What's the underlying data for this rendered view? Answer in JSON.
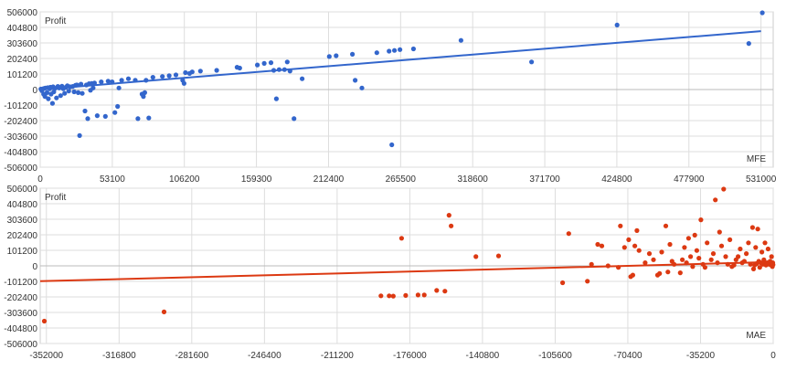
{
  "chart_data": [
    {
      "type": "scatter",
      "title": "",
      "ylabel": "Profit",
      "xlabel": "MFE",
      "color": "#3366cc",
      "xlim": [
        0,
        540000
      ],
      "ylim": [
        -506000,
        506000
      ],
      "xticks": [
        0,
        53100,
        106200,
        159300,
        212400,
        265500,
        318600,
        371700,
        424800,
        477900,
        531000
      ],
      "yticks": [
        -506000,
        -404800,
        -303600,
        -202400,
        -101200,
        0,
        101200,
        202400,
        303600,
        404800,
        506000
      ],
      "grid": true,
      "trendline": [
        [
          0,
          0
        ],
        [
          531000,
          380000
        ]
      ],
      "points": [
        [
          500,
          3000
        ],
        [
          1200,
          -8000
        ],
        [
          2000,
          5000
        ],
        [
          2500,
          -30000
        ],
        [
          3000,
          8000
        ],
        [
          3500,
          -45000
        ],
        [
          4000,
          10000
        ],
        [
          5000,
          -20000
        ],
        [
          5500,
          12000
        ],
        [
          6000,
          -60000
        ],
        [
          7000,
          5000
        ],
        [
          7500,
          15000
        ],
        [
          8000,
          -30000
        ],
        [
          9000,
          -90000
        ],
        [
          9500,
          18000
        ],
        [
          10000,
          -15000
        ],
        [
          11000,
          8000
        ],
        [
          12000,
          -55000
        ],
        [
          13000,
          20000
        ],
        [
          14000,
          10000
        ],
        [
          15000,
          -40000
        ],
        [
          16000,
          22000
        ],
        [
          17000,
          5000
        ],
        [
          18000,
          -25000
        ],
        [
          19000,
          15000
        ],
        [
          20000,
          25000
        ],
        [
          21000,
          -10000
        ],
        [
          22000,
          18000
        ],
        [
          24000,
          20000
        ],
        [
          25000,
          -15000
        ],
        [
          26000,
          28000
        ],
        [
          27000,
          30000
        ],
        [
          28000,
          -20000
        ],
        [
          29000,
          -300000
        ],
        [
          30000,
          35000
        ],
        [
          31000,
          -25000
        ],
        [
          33000,
          -140000
        ],
        [
          34000,
          30000
        ],
        [
          35000,
          -190000
        ],
        [
          36000,
          38000
        ],
        [
          37000,
          -5000
        ],
        [
          38000,
          40000
        ],
        [
          39000,
          10000
        ],
        [
          40000,
          42000
        ],
        [
          42000,
          -170000
        ],
        [
          45000,
          50000
        ],
        [
          48000,
          -175000
        ],
        [
          50000,
          55000
        ],
        [
          53000,
          50000
        ],
        [
          55000,
          -150000
        ],
        [
          57000,
          -110000
        ],
        [
          58000,
          10000
        ],
        [
          60000,
          60000
        ],
        [
          65000,
          70000
        ],
        [
          70000,
          60000
        ],
        [
          72000,
          -190000
        ],
        [
          75000,
          -30000
        ],
        [
          76000,
          -45000
        ],
        [
          77000,
          -20000
        ],
        [
          78000,
          60000
        ],
        [
          80000,
          -185000
        ],
        [
          83000,
          80000
        ],
        [
          90000,
          85000
        ],
        [
          95000,
          90000
        ],
        [
          100000,
          95000
        ],
        [
          105000,
          60000
        ],
        [
          106000,
          40000
        ],
        [
          107000,
          110000
        ],
        [
          110000,
          105000
        ],
        [
          112000,
          115000
        ],
        [
          118000,
          120000
        ],
        [
          130000,
          125000
        ],
        [
          145000,
          145000
        ],
        [
          147000,
          140000
        ],
        [
          160000,
          160000
        ],
        [
          165000,
          170000
        ],
        [
          170000,
          175000
        ],
        [
          172000,
          125000
        ],
        [
          174000,
          -60000
        ],
        [
          176000,
          130000
        ],
        [
          180000,
          130000
        ],
        [
          182000,
          180000
        ],
        [
          184000,
          120000
        ],
        [
          187000,
          -190000
        ],
        [
          193000,
          70000
        ],
        [
          213000,
          215000
        ],
        [
          218000,
          220000
        ],
        [
          230000,
          230000
        ],
        [
          232000,
          60000
        ],
        [
          237000,
          10000
        ],
        [
          248000,
          240000
        ],
        [
          257000,
          250000
        ],
        [
          259000,
          -360000
        ],
        [
          261000,
          255000
        ],
        [
          265000,
          260000
        ],
        [
          275000,
          265000
        ],
        [
          310000,
          320000
        ],
        [
          362000,
          180000
        ],
        [
          425000,
          420000
        ],
        [
          522000,
          300000
        ],
        [
          532000,
          500000
        ]
      ]
    },
    {
      "type": "scatter",
      "title": "",
      "ylabel": "Profit",
      "xlabel": "MAE",
      "color": "#dc3912",
      "xlim": [
        -355000,
        0
      ],
      "ylim": [
        -506000,
        506000
      ],
      "xticks": [
        -352000,
        -316800,
        -281600,
        -246400,
        -211200,
        -176000,
        -140800,
        -105600,
        -70400,
        -35200,
        0
      ],
      "yticks": [
        -506000,
        -404800,
        -303600,
        -202400,
        -101200,
        0,
        101200,
        202400,
        303600,
        404800,
        506000
      ],
      "grid": true,
      "trendline": [
        [
          -355000,
          -100000
        ],
        [
          0,
          25000
        ]
      ],
      "points": [
        [
          -353000,
          -360000
        ],
        [
          -295000,
          -300000
        ],
        [
          -190000,
          -195000
        ],
        [
          -186000,
          -195000
        ],
        [
          -184000,
          -197000
        ],
        [
          -180000,
          180000
        ],
        [
          -178000,
          -193000
        ],
        [
          -172000,
          -190000
        ],
        [
          -169000,
          -190000
        ],
        [
          -163000,
          -160000
        ],
        [
          -159000,
          -165000
        ],
        [
          -157000,
          330000
        ],
        [
          -156000,
          260000
        ],
        [
          -144000,
          60000
        ],
        [
          -133000,
          65000
        ],
        [
          -102000,
          -110000
        ],
        [
          -99000,
          210000
        ],
        [
          -90000,
          -100000
        ],
        [
          -88000,
          10000
        ],
        [
          -85000,
          140000
        ],
        [
          -83000,
          130000
        ],
        [
          -80000,
          0
        ],
        [
          -75000,
          -10000
        ],
        [
          -74000,
          260000
        ],
        [
          -72000,
          120000
        ],
        [
          -70000,
          170000
        ],
        [
          -69000,
          -70000
        ],
        [
          -68000,
          -60000
        ],
        [
          -67000,
          130000
        ],
        [
          -66000,
          230000
        ],
        [
          -65000,
          100000
        ],
        [
          -62000,
          20000
        ],
        [
          -60000,
          80000
        ],
        [
          -58000,
          40000
        ],
        [
          -56000,
          -60000
        ],
        [
          -55000,
          -50000
        ],
        [
          -54000,
          90000
        ],
        [
          -52000,
          260000
        ],
        [
          -51000,
          -40000
        ],
        [
          -50000,
          140000
        ],
        [
          -49000,
          30000
        ],
        [
          -48000,
          10000
        ],
        [
          -45000,
          -45000
        ],
        [
          -44000,
          40000
        ],
        [
          -43000,
          120000
        ],
        [
          -42000,
          20000
        ],
        [
          -41000,
          180000
        ],
        [
          -40000,
          60000
        ],
        [
          -39000,
          -5000
        ],
        [
          -38000,
          200000
        ],
        [
          -37000,
          100000
        ],
        [
          -36000,
          50000
        ],
        [
          -35000,
          300000
        ],
        [
          -34000,
          10000
        ],
        [
          -33000,
          -10000
        ],
        [
          -32000,
          150000
        ],
        [
          -30000,
          40000
        ],
        [
          -29000,
          80000
        ],
        [
          -28000,
          430000
        ],
        [
          -27000,
          20000
        ],
        [
          -26000,
          220000
        ],
        [
          -25000,
          130000
        ],
        [
          -24000,
          500000
        ],
        [
          -23000,
          60000
        ],
        [
          -22000,
          10000
        ],
        [
          -21000,
          170000
        ],
        [
          -20000,
          -5000
        ],
        [
          -19000,
          5000
        ],
        [
          -18000,
          40000
        ],
        [
          -17000,
          60000
        ],
        [
          -16000,
          110000
        ],
        [
          -15000,
          20000
        ],
        [
          -14000,
          30000
        ],
        [
          -13000,
          80000
        ],
        [
          -12000,
          150000
        ],
        [
          -11000,
          10000
        ],
        [
          -10000,
          250000
        ],
        [
          -9500,
          -20000
        ],
        [
          -9000,
          5000
        ],
        [
          -8500,
          120000
        ],
        [
          -8000,
          15000
        ],
        [
          -7500,
          240000
        ],
        [
          -7000,
          30000
        ],
        [
          -6500,
          -10000
        ],
        [
          -6000,
          20000
        ],
        [
          -5500,
          90000
        ],
        [
          -5000,
          10000
        ],
        [
          -4500,
          40000
        ],
        [
          -4000,
          150000
        ],
        [
          -3500,
          5000
        ],
        [
          -3000,
          20000
        ],
        [
          -2500,
          110000
        ],
        [
          -2000,
          10000
        ],
        [
          -1500,
          30000
        ],
        [
          -1000,
          5000
        ],
        [
          -800,
          60000
        ],
        [
          -600,
          15000
        ],
        [
          -400,
          -5000
        ],
        [
          -200,
          20000
        ],
        [
          -100,
          8000
        ]
      ]
    }
  ]
}
